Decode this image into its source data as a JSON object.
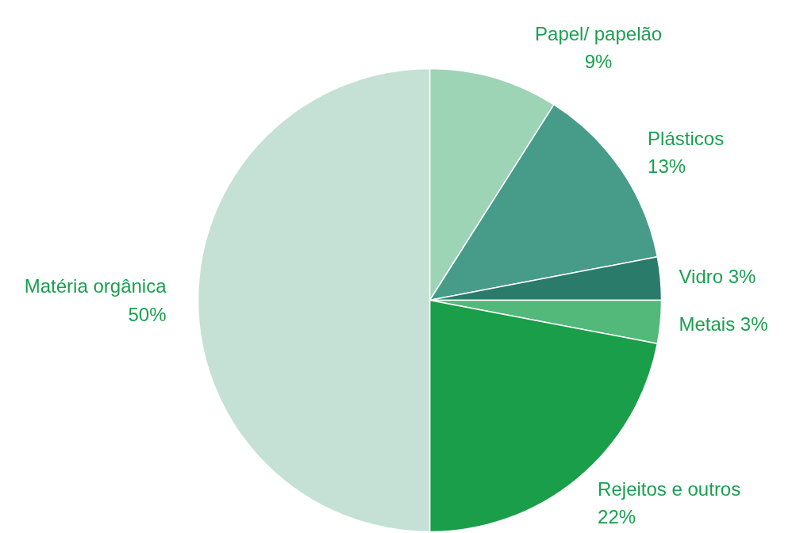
{
  "chart_data": {
    "type": "pie",
    "categories": [
      "Papel/ papelão",
      "Plásticos",
      "Vidro",
      "Metais",
      "Rejeitos e outros",
      "Matéria orgânica"
    ],
    "values": [
      9,
      13,
      3,
      3,
      22,
      50
    ],
    "value_labels": [
      "9%",
      "13%",
      "3%",
      "3%",
      "22%",
      "50%"
    ],
    "colors": [
      "#9dd4b6",
      "#469c89",
      "#2a7b6a",
      "#52b97a",
      "#1a9e4a",
      "#c5e1d5"
    ]
  }
}
